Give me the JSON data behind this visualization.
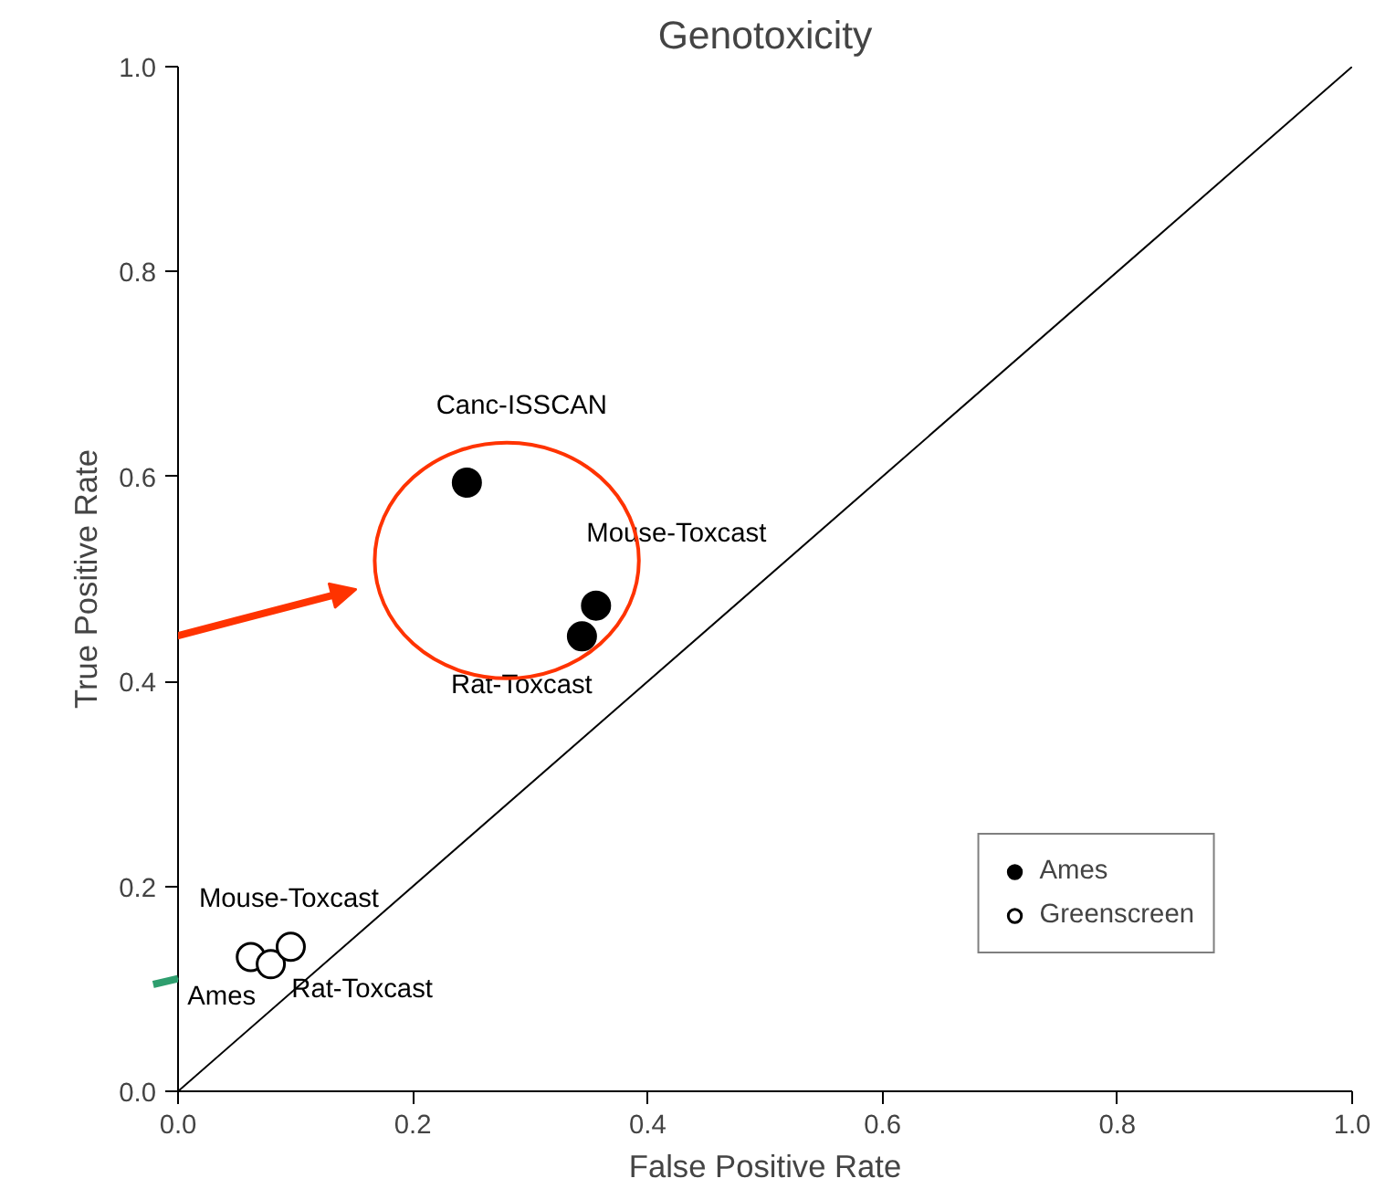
{
  "chart_data": {
    "type": "scatter",
    "title": "Genotoxicity",
    "xlabel": "False Positive Rate",
    "ylabel": "True Positive Rate",
    "xlim": [
      0,
      1
    ],
    "ylim": [
      0,
      1
    ],
    "xticks": [
      {
        "value": 0,
        "label": "0.0"
      },
      0.2,
      0.4,
      0.6,
      0.8,
      {
        "value": 1,
        "label": "1.0"
      }
    ],
    "yticks": [
      {
        "value": 0,
        "label": "0.0"
      },
      0.2,
      0.4,
      0.6,
      0.8,
      {
        "value": 1,
        "label": "1.0"
      }
    ],
    "grid": false,
    "legend": "bottom right",
    "series": [
      {
        "name": "Ames",
        "color": "#000000",
        "marker": "circle",
        "x": [
          0.246,
          0.356,
          0.344
        ],
        "values": [
          0.594,
          0.474,
          0.444
        ],
        "value_labels": [
          "Canc-ISSCAN",
          "Mouse-Toxcast",
          "Rat-Toxcast"
        ]
      },
      {
        "name": "Greenscreen",
        "color": "#ffffff",
        "marker": "circle",
        "x": [
          0.062,
          0.079,
          0.096
        ],
        "values": [
          0.131,
          0.124,
          0.141
        ],
        "value_labels": [
          "Ames",
          "Rat-Toxcast",
          "Mouse-Toxcast"
        ]
      },
      {
        "type": "line",
        "color": "#000000",
        "x": [
          0,
          1
        ],
        "values": [
          0,
          1
        ]
      }
    ]
  }
}
